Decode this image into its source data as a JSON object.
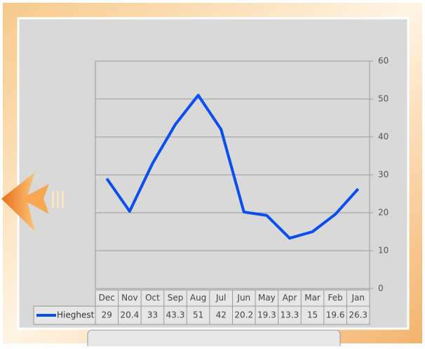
{
  "chart_data": {
    "type": "line",
    "categories": [
      "Dec",
      "Nov",
      "Oct",
      "Sep",
      "Aug",
      "Jul",
      "Jun",
      "May",
      "Apr",
      "Mar",
      "Feb",
      "Jan"
    ],
    "series": [
      {
        "name": "Hieghest",
        "color": "#0a4ef0",
        "values": [
          29,
          20.4,
          33,
          43.3,
          51,
          42,
          20.2,
          19.3,
          13.3,
          15,
          19.6,
          26.3
        ]
      }
    ],
    "ylim": [
      0,
      60
    ],
    "yticks": [
      0,
      10,
      20,
      30,
      40,
      50,
      60
    ],
    "grid": true,
    "y_axis_position": "right",
    "data_table": true
  }
}
